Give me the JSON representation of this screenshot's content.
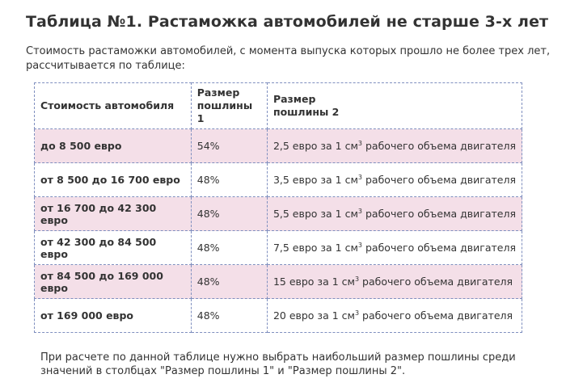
{
  "title": "Таблица №1. Растаможка автомобилей не старше 3-х лет",
  "intro": "Стоимость растаможки автомобилей, с момента выпуска которых прошло не более трех лет, рассчитывается по таблице:",
  "table": {
    "headers": {
      "col1": "Стоимость автомобиля",
      "col2_line1": "Размер",
      "col2_line2": "пошлины 1",
      "col3_line1": "Размер",
      "col3_line2": "пошлины 2"
    },
    "unit_suffix": "3",
    "rows": [
      {
        "cost": "до 8 500 евро",
        "duty1": "54%",
        "duty2_pre": "2,5 евро за 1 см",
        "duty2_post": " рабочего объема двигателя"
      },
      {
        "cost": "от 8 500 до 16 700 евро",
        "duty1": "48%",
        "duty2_pre": "3,5 евро за 1 см",
        "duty2_post": " рабочего объема двигателя"
      },
      {
        "cost": "от 16 700 до 42 300 евро",
        "duty1": "48%",
        "duty2_pre": "5,5 евро за 1 см",
        "duty2_post": " рабочего объема двигателя"
      },
      {
        "cost": "от 42 300 до 84 500 евро",
        "duty1": "48%",
        "duty2_pre": "7,5 евро за 1 см",
        "duty2_post": " рабочего объема двигателя"
      },
      {
        "cost": "от 84 500 до 169 000 евро",
        "duty1": "48%",
        "duty2_pre": "15 евро за 1 см",
        "duty2_post": " рабочего объема двигателя"
      },
      {
        "cost": "от 169 000 евро",
        "duty1": "48%",
        "duty2_pre": "20 евро за 1 см",
        "duty2_post": " рабочего объема двигателя"
      }
    ]
  },
  "note": "При расчете по данной таблице нужно выбрать наибольший размер пошлины среди значений в столбцах \"Размер пошлины 1\" и \"Размер пошлины 2\".",
  "colors": {
    "stripe": "#f4dfe8",
    "border": "#7f8fbf",
    "text": "#333333"
  }
}
